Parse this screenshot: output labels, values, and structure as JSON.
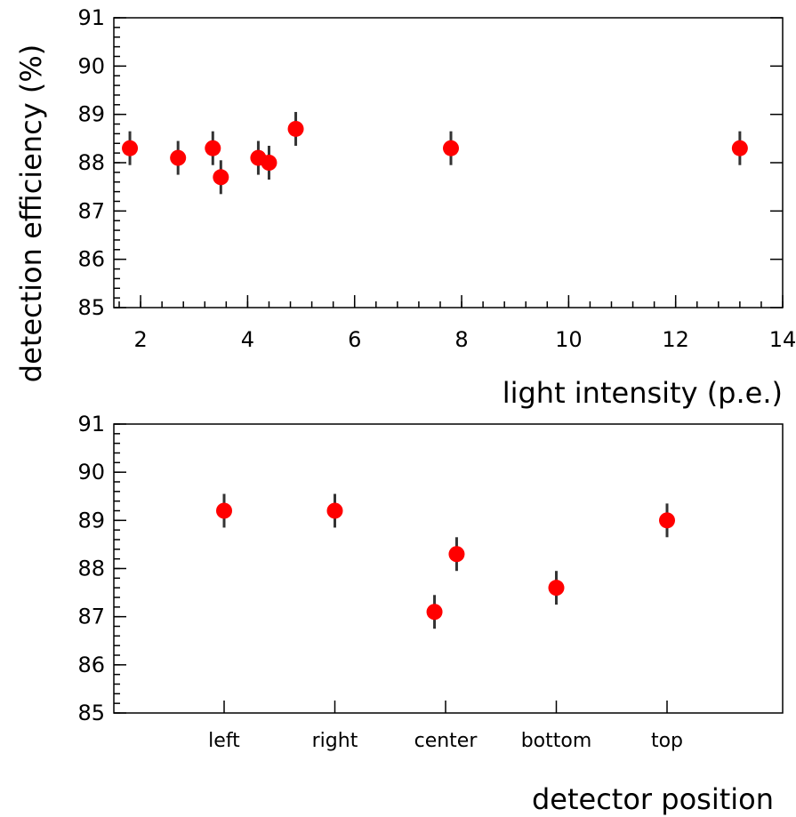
{
  "chart_data": [
    {
      "type": "scatter",
      "title": "",
      "xlabel": "light intensity (p.e.)",
      "ylabel": "detection efficiency (%)",
      "xlim": [
        1.5,
        14
      ],
      "ylim": [
        85,
        91
      ],
      "xticks": [
        2,
        4,
        6,
        8,
        10,
        12,
        14
      ],
      "yticks": [
        85,
        86,
        87,
        88,
        89,
        90,
        91
      ],
      "marker_color": "#ff0000",
      "points": [
        {
          "x": 1.8,
          "y": 88.3,
          "err": 0.35
        },
        {
          "x": 2.7,
          "y": 88.1,
          "err": 0.35
        },
        {
          "x": 3.35,
          "y": 88.3,
          "err": 0.35
        },
        {
          "x": 3.5,
          "y": 87.7,
          "err": 0.35
        },
        {
          "x": 4.2,
          "y": 88.1,
          "err": 0.35
        },
        {
          "x": 4.4,
          "y": 88.0,
          "err": 0.35
        },
        {
          "x": 4.9,
          "y": 88.7,
          "err": 0.35
        },
        {
          "x": 7.8,
          "y": 88.3,
          "err": 0.35
        },
        {
          "x": 13.2,
          "y": 88.3,
          "err": 0.35
        }
      ]
    },
    {
      "type": "scatter",
      "title": "",
      "xlabel": "detector position",
      "ylabel": "detection efficiency (%)",
      "ylim": [
        85,
        91
      ],
      "yticks": [
        85,
        86,
        87,
        88,
        89,
        90,
        91
      ],
      "categories": [
        "left",
        "right",
        "center",
        "bottom",
        "top"
      ],
      "marker_color": "#ff0000",
      "points": [
        {
          "category": "left",
          "offset": 0,
          "y": 89.2,
          "err": 0.35
        },
        {
          "category": "right",
          "offset": 0,
          "y": 89.2,
          "err": 0.35
        },
        {
          "category": "center",
          "offset": -0.1,
          "y": 87.1,
          "err": 0.35
        },
        {
          "category": "center",
          "offset": 0.1,
          "y": 88.3,
          "err": 0.35
        },
        {
          "category": "bottom",
          "offset": 0,
          "y": 87.6,
          "err": 0.35
        },
        {
          "category": "top",
          "offset": 0,
          "y": 89.0,
          "err": 0.35
        }
      ]
    }
  ]
}
